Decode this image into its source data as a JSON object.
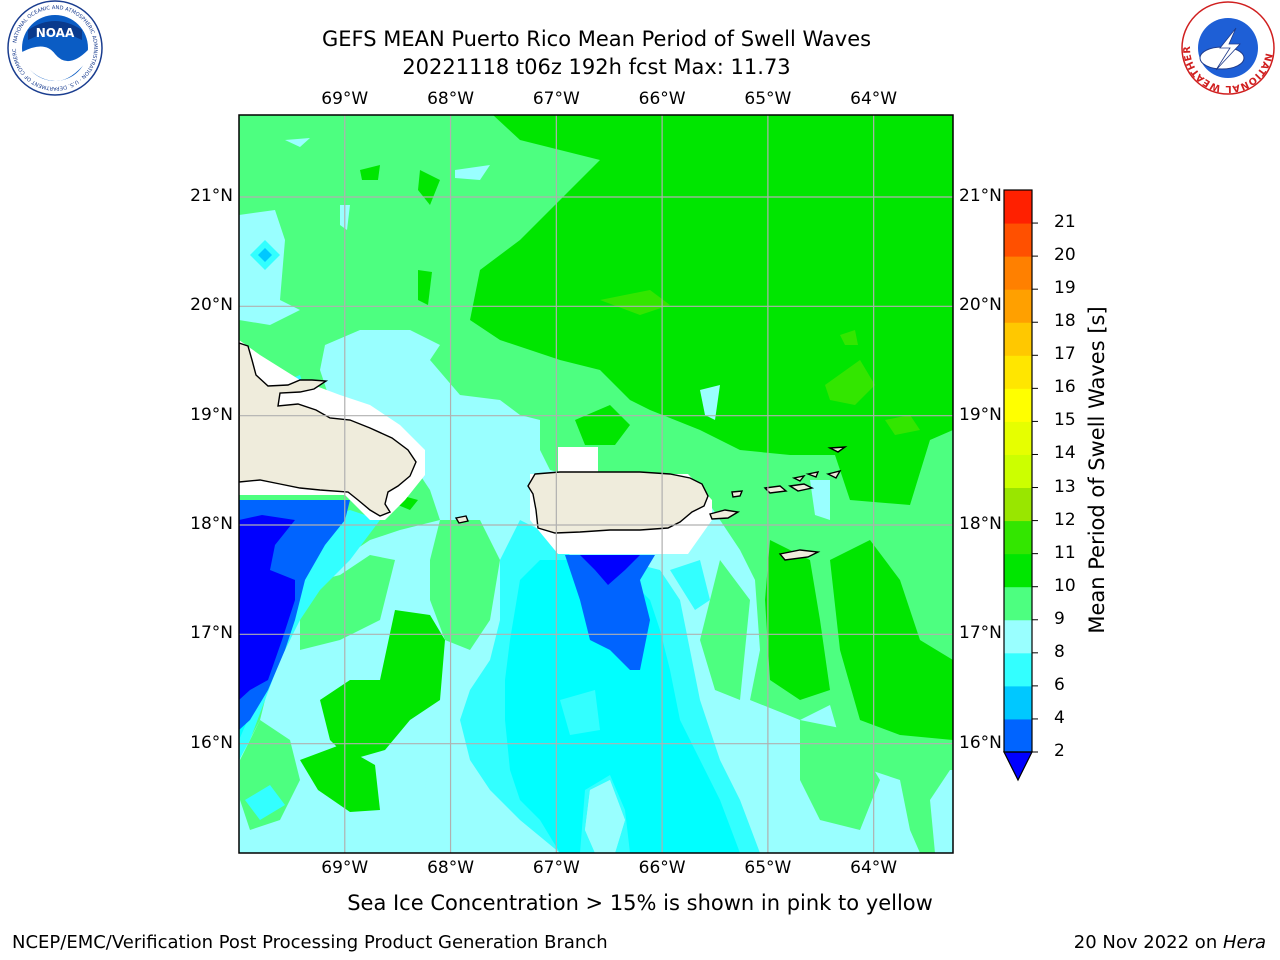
{
  "title": {
    "line1": "GEFS MEAN Puerto Rico Mean Period of Swell Waves",
    "line2": "20221118 t06z 192h fcst   Max: 11.73"
  },
  "logos": {
    "left": "NOAA",
    "left_ring_text": "NATIONAL OCEANIC AND ATMOSPHERIC ADMINISTRATION · U.S. DEPARTMENT OF COMMERCE",
    "right_ring_text": "NATIONAL WEATHER SERVICE"
  },
  "map": {
    "lon_labels": [
      "69°W",
      "68°W",
      "67°W",
      "66°W",
      "65°W",
      "64°W"
    ],
    "lat_labels": [
      "21°N",
      "20°N",
      "19°N",
      "18°N",
      "17°N",
      "16°N"
    ],
    "lon_values": [
      -69,
      -68,
      -67,
      -66,
      -65,
      -64
    ],
    "lat_values": [
      21,
      20,
      19,
      18,
      17,
      16
    ],
    "extent": {
      "lon_min": -70.0,
      "lon_max": -63.25,
      "lat_min": 15.0,
      "lat_max": 21.75
    },
    "land_color": "#efecdc",
    "ocean_base_color": "#4dff80",
    "grid_color": "#b0b0b0"
  },
  "colorbar": {
    "title": "Mean Period of Swell Waves [s]",
    "levels": [
      2,
      4,
      6,
      8,
      9,
      10,
      11,
      12,
      13,
      14,
      15,
      16,
      17,
      18,
      19,
      20,
      21
    ],
    "level_labels": [
      "2",
      "4",
      "6",
      "8",
      "9",
      "10",
      "11",
      "12",
      "13",
      "14",
      "15",
      "16",
      "17",
      "18",
      "19",
      "20",
      "21"
    ],
    "colors": [
      "#0064ff",
      "#00c8ff",
      "#33ffff",
      "#99ffff",
      "#4dff80",
      "#00e600",
      "#33e600",
      "#99e600",
      "#ccff00",
      "#e6ff00",
      "#ffff00",
      "#ffe600",
      "#ffc800",
      "#ffa000",
      "#ff8000",
      "#ff5000",
      "#ff2000"
    ],
    "under_color": "#0000ff",
    "extend": "min"
  },
  "subcaption": "Sea Ice Concentration > 15% is shown in pink to yellow",
  "footer": {
    "left": "NCEP/EMC/Verification Post Processing Product Generation Branch",
    "right_date": "20 Nov 2022 on ",
    "right_machine": "Hera"
  }
}
